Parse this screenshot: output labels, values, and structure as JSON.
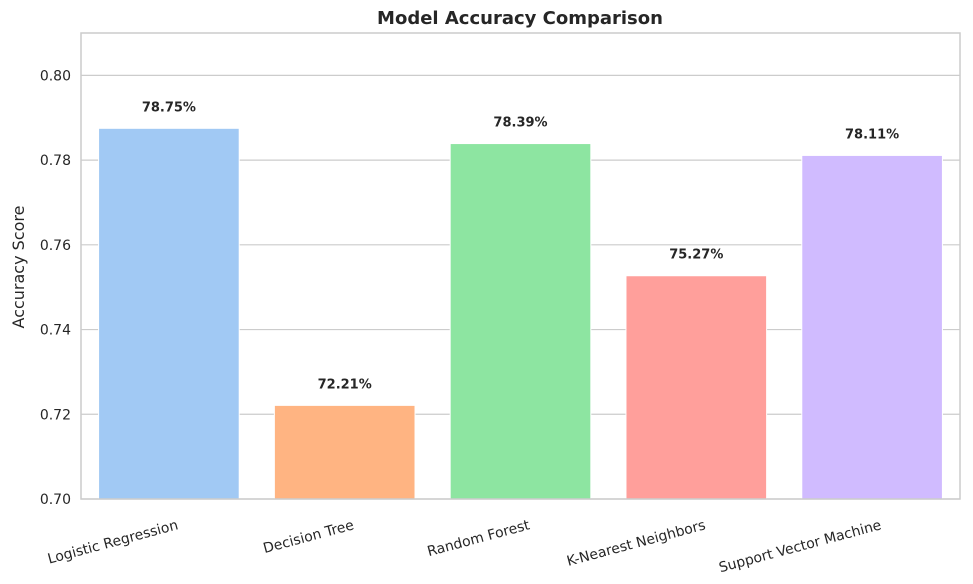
{
  "chart_data": {
    "type": "bar",
    "title": "Model Accuracy Comparison",
    "xlabel": "",
    "ylabel": "Accuracy Score",
    "categories": [
      "Logistic Regression",
      "Decision Tree",
      "Random Forest",
      "K-Nearest Neighbors",
      "Support Vector Machine"
    ],
    "values": [
      0.7875,
      0.7221,
      0.7839,
      0.7527,
      0.7811
    ],
    "data_labels": [
      "78.75%",
      "72.21%",
      "78.39%",
      "75.27%",
      "78.11%"
    ],
    "colors": [
      "#a1c9f4",
      "#ffb482",
      "#8de5a1",
      "#ff9f9b",
      "#d0bbff"
    ],
    "ylim": [
      0.7,
      0.81
    ],
    "yticks": [
      0.7,
      0.72,
      0.74,
      0.76,
      0.78,
      0.8
    ],
    "ytick_labels": [
      "0.70",
      "0.72",
      "0.74",
      "0.76",
      "0.78",
      "0.80"
    ],
    "grid": true,
    "x_tick_rotation_deg": 15
  }
}
